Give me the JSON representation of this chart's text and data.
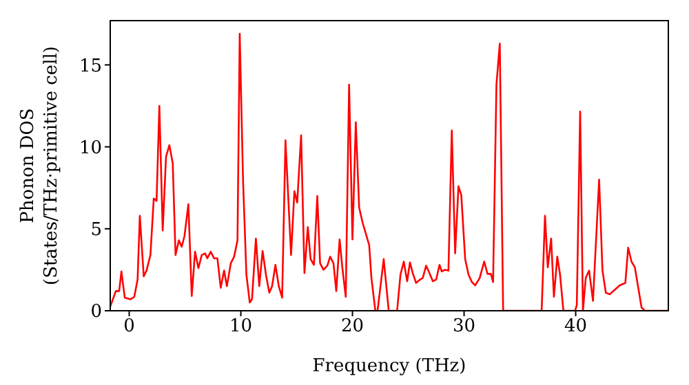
{
  "chart_data": {
    "type": "line",
    "xlabel": "Frequency (THz)",
    "ylabel": "Phonon DOS\n(States/THz·primitive cell)",
    "x": [
      -1.7,
      -1.2,
      -0.9,
      -0.7,
      -0.4,
      0.1,
      0.45,
      0.75,
      0.95,
      1.3,
      1.55,
      1.9,
      2.2,
      2.45,
      2.7,
      3.0,
      3.3,
      3.6,
      3.9,
      4.15,
      4.45,
      4.7,
      4.95,
      5.3,
      5.6,
      5.9,
      6.2,
      6.5,
      6.8,
      7.0,
      7.3,
      7.6,
      7.9,
      8.2,
      8.5,
      8.75,
      9.1,
      9.4,
      9.7,
      9.9,
      10.2,
      10.5,
      10.8,
      11.0,
      11.35,
      11.65,
      11.95,
      12.25,
      12.55,
      12.8,
      13.1,
      13.4,
      13.7,
      14.0,
      14.5,
      14.8,
      15.05,
      15.4,
      15.7,
      16.0,
      16.25,
      16.55,
      16.85,
      17.1,
      17.4,
      17.75,
      18.0,
      18.3,
      18.55,
      18.85,
      19.1,
      19.4,
      19.7,
      20.0,
      20.3,
      20.6,
      20.9,
      21.2,
      21.5,
      21.7,
      22.05,
      22.25,
      22.8,
      23.25,
      24.0,
      24.3,
      24.6,
      24.9,
      25.15,
      25.4,
      25.7,
      26.05,
      26.3,
      26.6,
      26.9,
      27.2,
      27.5,
      27.8,
      28.0,
      28.3,
      28.6,
      28.9,
      29.2,
      29.5,
      29.75,
      30.1,
      30.4,
      30.7,
      31.0,
      31.4,
      31.8,
      32.1,
      32.4,
      32.6,
      32.9,
      33.2,
      33.5,
      36.95,
      37.25,
      37.5,
      37.8,
      38.05,
      38.35,
      38.6,
      38.9,
      39.95,
      40.1,
      40.4,
      40.65,
      40.9,
      41.2,
      41.55,
      42.1,
      42.4,
      42.7,
      43.05,
      43.45,
      43.95,
      44.45,
      44.7,
      45.0,
      45.3,
      45.9,
      46.2,
      48.3
    ],
    "series": [
      {
        "color": "#ff0000",
        "values": [
          0.25,
          1.2,
          1.2,
          2.4,
          0.8,
          0.7,
          0.85,
          1.9,
          5.8,
          2.1,
          2.45,
          3.4,
          6.85,
          6.7,
          12.5,
          4.9,
          9.4,
          10.1,
          9.0,
          3.4,
          4.3,
          3.9,
          4.55,
          6.5,
          0.9,
          3.6,
          2.6,
          3.4,
          3.5,
          3.2,
          3.6,
          3.2,
          3.2,
          1.4,
          2.45,
          1.5,
          2.9,
          3.3,
          4.3,
          16.9,
          7.9,
          2.2,
          0.5,
          0.7,
          4.4,
          1.5,
          3.65,
          2.2,
          1.1,
          1.5,
          2.8,
          1.5,
          0.8,
          10.4,
          3.4,
          7.3,
          6.6,
          10.7,
          2.3,
          5.1,
          3.15,
          2.8,
          7.0,
          2.9,
          2.5,
          2.75,
          3.3,
          2.9,
          1.2,
          4.35,
          2.6,
          0.85,
          13.8,
          4.35,
          11.5,
          6.3,
          5.4,
          4.7,
          4.0,
          2.0,
          0,
          0,
          3.15,
          0,
          0,
          2.2,
          3.0,
          1.8,
          2.95,
          2.3,
          1.7,
          1.9,
          2.0,
          2.75,
          2.3,
          1.8,
          1.9,
          2.8,
          2.4,
          2.5,
          2.45,
          11.0,
          3.5,
          7.6,
          7.05,
          3.15,
          2.2,
          1.75,
          1.55,
          2.0,
          3.0,
          2.25,
          2.25,
          1.75,
          13.8,
          16.3,
          0,
          0,
          5.8,
          2.65,
          4.4,
          0.85,
          3.3,
          2.2,
          0,
          0,
          0.35,
          12.15,
          0,
          2.0,
          2.45,
          0.6,
          8.0,
          2.45,
          1.1,
          1.0,
          1.25,
          1.55,
          1.7,
          3.85,
          3.0,
          2.65,
          0.2,
          0,
          0
        ]
      }
    ],
    "xlim": [
      -1.7,
      48.3
    ],
    "ylim": [
      0,
      17.7
    ],
    "xticks": [
      0,
      10,
      20,
      30,
      40
    ],
    "yticks": [
      0,
      5,
      10,
      15
    ],
    "legend": false,
    "grid": false,
    "marker": "none",
    "line_style": "solid"
  }
}
